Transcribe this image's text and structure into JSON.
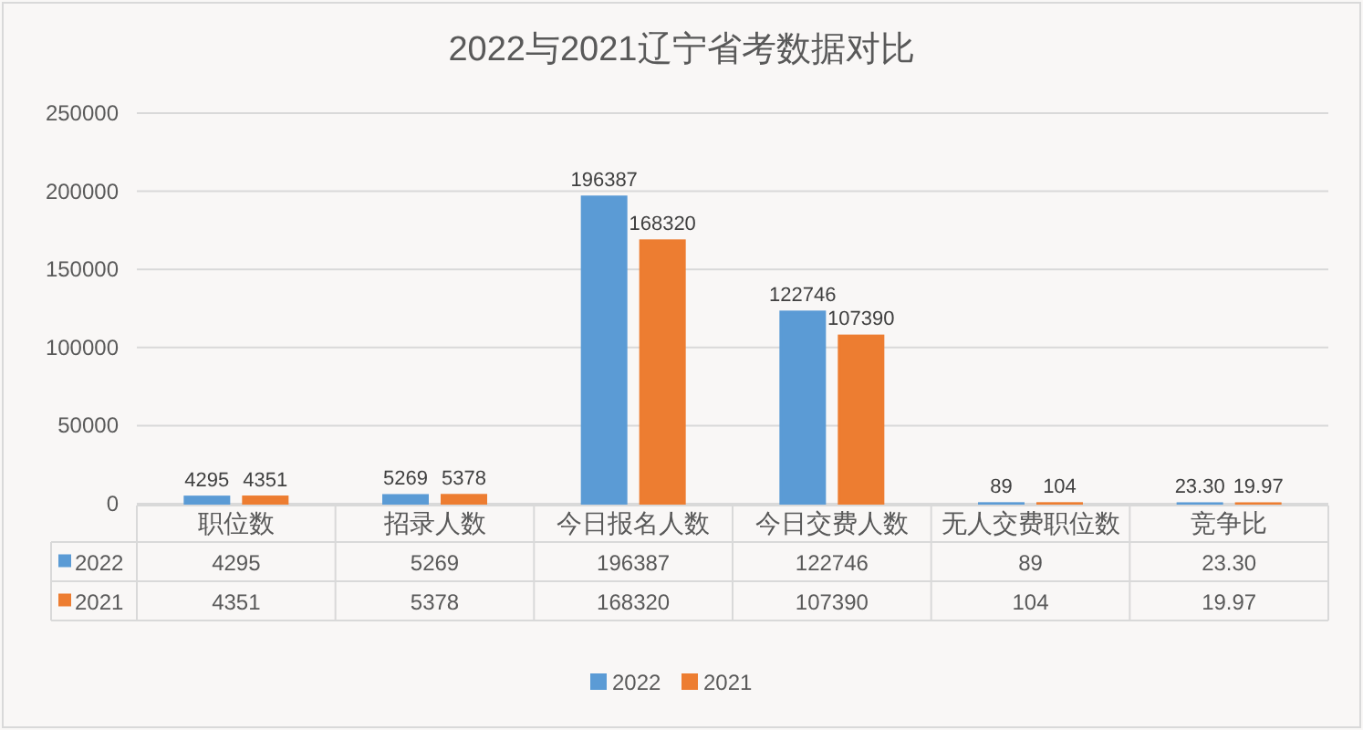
{
  "chart_data": {
    "type": "bar",
    "title": "2022与2021辽宁省考数据对比",
    "categories": [
      "职位数",
      "招录人数",
      "今日报名人数",
      "今日交费人数",
      "无人交费职位数",
      "竞争比"
    ],
    "series": [
      {
        "name": "2022",
        "color": "#5b9bd5",
        "values": [
          4295,
          5269,
          196387,
          122746,
          89,
          23.3
        ],
        "value_labels": [
          "4295",
          "5269",
          "196387",
          "122746",
          "89",
          "23.30"
        ]
      },
      {
        "name": "2021",
        "color": "#ed7d31",
        "values": [
          4351,
          5378,
          168320,
          107390,
          104,
          19.97
        ],
        "value_labels": [
          "4351",
          "5378",
          "168320",
          "107390",
          "104",
          "19.97"
        ]
      }
    ],
    "ylim": [
      0,
      250000
    ],
    "yticks": [
      0,
      50000,
      100000,
      150000,
      200000,
      250000
    ],
    "grid": "y",
    "legend": "bottom"
  }
}
